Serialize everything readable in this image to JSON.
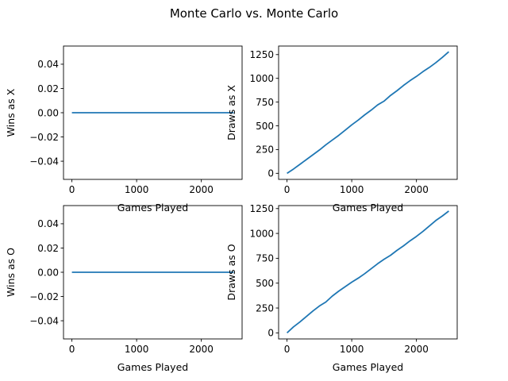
{
  "figure": {
    "title": "Monte Carlo vs. Monte Carlo"
  },
  "chart_data": [
    {
      "type": "line",
      "title": "",
      "xlabel": "Games Played",
      "ylabel": "Wins as X",
      "xlim": [
        -130,
        2630
      ],
      "ylim": [
        -0.055,
        0.055
      ],
      "xticks": [
        0,
        1000,
        2000
      ],
      "xtick_labels": [
        "0",
        "1000",
        "2000"
      ],
      "yticks": [
        -0.04,
        -0.02,
        0.0,
        0.02,
        0.04
      ],
      "ytick_labels": [
        "−0.04",
        "−0.02",
        "0.00",
        "0.02",
        "0.04"
      ],
      "grid": false,
      "series": [
        {
          "x": [
            0,
            500,
            1000,
            1500,
            2000,
            2500
          ],
          "y": [
            0,
            0,
            0,
            0,
            0,
            0
          ]
        }
      ]
    },
    {
      "type": "line",
      "title": "",
      "xlabel": "Games Played",
      "ylabel": "Draws as X",
      "xlim": [
        -130,
        2630
      ],
      "ylim": [
        -64,
        1340
      ],
      "xticks": [
        0,
        1000,
        2000
      ],
      "xtick_labels": [
        "0",
        "1000",
        "2000"
      ],
      "yticks": [
        0,
        250,
        500,
        750,
        1000,
        1250
      ],
      "ytick_labels": [
        "0",
        "250",
        "500",
        "750",
        "1000",
        "1250"
      ],
      "grid": false,
      "series": [
        {
          "x": [
            0,
            100,
            200,
            300,
            400,
            500,
            600,
            700,
            800,
            900,
            1000,
            1100,
            1200,
            1300,
            1400,
            1500,
            1600,
            1700,
            1800,
            1900,
            2000,
            2100,
            2200,
            2300,
            2400,
            2500
          ],
          "y": [
            0,
            45,
            95,
            145,
            195,
            245,
            300,
            350,
            400,
            455,
            510,
            560,
            615,
            665,
            720,
            760,
            820,
            870,
            925,
            975,
            1020,
            1070,
            1115,
            1165,
            1220,
            1280
          ]
        }
      ]
    },
    {
      "type": "line",
      "title": "",
      "xlabel": "Games Played",
      "ylabel": "Wins as O",
      "xlim": [
        -130,
        2630
      ],
      "ylim": [
        -0.055,
        0.055
      ],
      "xticks": [
        0,
        1000,
        2000
      ],
      "xtick_labels": [
        "0",
        "1000",
        "2000"
      ],
      "yticks": [
        -0.04,
        -0.02,
        0.0,
        0.02,
        0.04
      ],
      "ytick_labels": [
        "−0.04",
        "−0.02",
        "0.00",
        "0.02",
        "0.04"
      ],
      "grid": false,
      "series": [
        {
          "x": [
            0,
            500,
            1000,
            1500,
            2000,
            2500
          ],
          "y": [
            0,
            0,
            0,
            0,
            0,
            0
          ]
        }
      ]
    },
    {
      "type": "line",
      "title": "",
      "xlabel": "Games Played",
      "ylabel": "Draws as O",
      "xlim": [
        -130,
        2630
      ],
      "ylim": [
        -61,
        1280
      ],
      "xticks": [
        0,
        1000,
        2000
      ],
      "xtick_labels": [
        "0",
        "1000",
        "2000"
      ],
      "yticks": [
        0,
        250,
        500,
        750,
        1000,
        1250
      ],
      "ytick_labels": [
        "0",
        "250",
        "500",
        "750",
        "1000",
        "1250"
      ],
      "grid": false,
      "series": [
        {
          "x": [
            0,
            100,
            200,
            300,
            400,
            500,
            600,
            700,
            800,
            900,
            1000,
            1100,
            1200,
            1300,
            1400,
            1500,
            1600,
            1700,
            1800,
            1900,
            2000,
            2100,
            2200,
            2300,
            2400,
            2500
          ],
          "y": [
            0,
            60,
            110,
            165,
            220,
            270,
            310,
            370,
            420,
            465,
            510,
            550,
            595,
            645,
            695,
            740,
            780,
            830,
            875,
            925,
            970,
            1020,
            1075,
            1130,
            1175,
            1225
          ]
        }
      ]
    }
  ]
}
